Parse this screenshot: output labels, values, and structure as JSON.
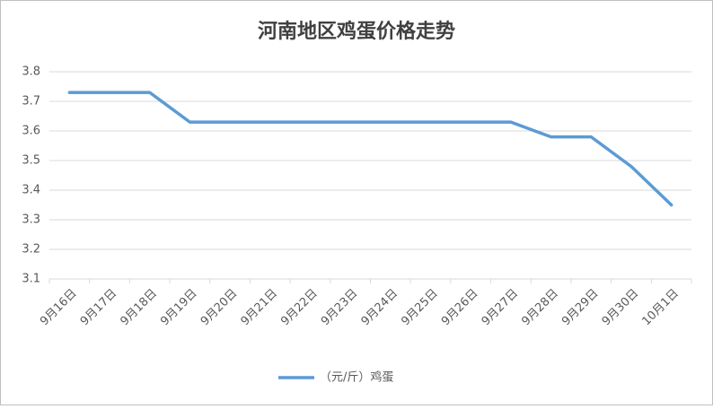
{
  "chart_data": {
    "type": "line",
    "title": "河南地区鸡蛋价格走势",
    "categories": [
      "9月16日",
      "9月17日",
      "9月18日",
      "9月19日",
      "9月20日",
      "9月21日",
      "9月22日",
      "9月23日",
      "9月24日",
      "9月25日",
      "9月26日",
      "9月27日",
      "9月28日",
      "9月29日",
      "9月30日",
      "10月1日"
    ],
    "series": [
      {
        "name": "（元/斤）鸡蛋",
        "color": "#5b9bd5",
        "values": [
          3.73,
          3.73,
          3.73,
          3.63,
          3.63,
          3.63,
          3.63,
          3.63,
          3.63,
          3.63,
          3.63,
          3.63,
          3.58,
          3.58,
          3.48,
          3.35
        ]
      }
    ],
    "ylim": [
      3.1,
      3.8
    ],
    "yticks": [
      3.1,
      3.2,
      3.3,
      3.4,
      3.5,
      3.6,
      3.7,
      3.8
    ],
    "grid": true,
    "legend": "bottom"
  }
}
